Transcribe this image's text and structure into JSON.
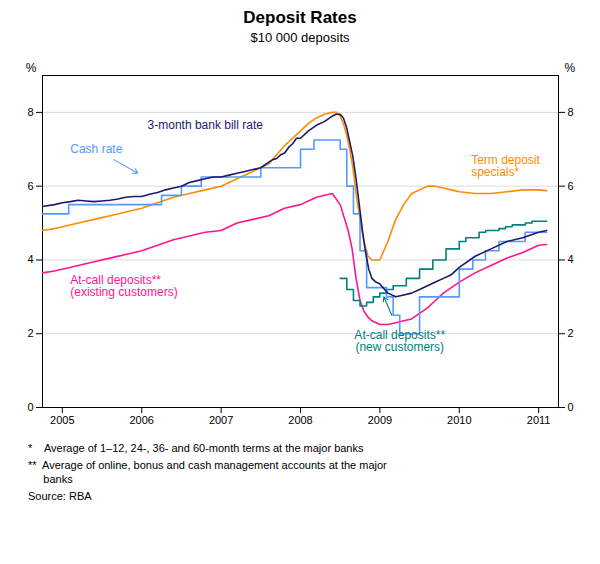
{
  "chart_data": {
    "type": "line",
    "title": "Deposit Rates",
    "subtitle": "$10 000 deposits",
    "ylabel": "%",
    "y2label": "%",
    "xlim": [
      2004.75,
      2011.25
    ],
    "xticks": [
      2005,
      2006,
      2007,
      2008,
      2009,
      2010,
      2011
    ],
    "ylim": [
      0,
      9
    ],
    "yticks": [
      0,
      2,
      4,
      6,
      8
    ],
    "y2lim": [
      0,
      9
    ],
    "y2ticks": [
      0,
      2,
      4,
      6,
      8
    ],
    "grid": true,
    "series": [
      {
        "name": "At-call deposits**\n(existing customers)",
        "color": "#ff1493",
        "type": "line",
        "x": [
          2004.75,
          2004.9,
          2005.0,
          2005.2,
          2005.4,
          2005.6,
          2005.8,
          2006.0,
          2006.2,
          2006.4,
          2006.6,
          2006.8,
          2007.0,
          2007.2,
          2007.4,
          2007.6,
          2007.8,
          2008.0,
          2008.2,
          2008.4,
          2008.5,
          2008.6,
          2008.65,
          2008.7,
          2008.75,
          2008.8,
          2008.85,
          2008.9,
          2009.0,
          2009.1,
          2009.2,
          2009.3,
          2009.4,
          2009.5,
          2009.6,
          2009.7,
          2009.8,
          2009.9,
          2010.0,
          2010.2,
          2010.4,
          2010.6,
          2010.8,
          2011.0,
          2011.1
        ],
        "values": [
          3.65,
          3.7,
          3.75,
          3.85,
          3.95,
          4.05,
          4.15,
          4.25,
          4.4,
          4.55,
          4.65,
          4.75,
          4.8,
          5.0,
          5.1,
          5.2,
          5.4,
          5.5,
          5.7,
          5.8,
          5.5,
          4.8,
          4.3,
          3.5,
          2.9,
          2.6,
          2.45,
          2.35,
          2.25,
          2.25,
          2.3,
          2.35,
          2.4,
          2.55,
          2.7,
          2.9,
          3.1,
          3.25,
          3.4,
          3.65,
          3.85,
          4.05,
          4.2,
          4.4,
          4.42
        ]
      },
      {
        "name": "Term deposit\nspecials*",
        "color": "#ff8c00",
        "type": "line",
        "x": [
          2004.75,
          2004.9,
          2005.0,
          2005.2,
          2005.4,
          2005.6,
          2005.8,
          2006.0,
          2006.2,
          2006.4,
          2006.6,
          2006.8,
          2007.0,
          2007.2,
          2007.4,
          2007.6,
          2007.8,
          2008.0,
          2008.1,
          2008.2,
          2008.3,
          2008.4,
          2008.45,
          2008.5,
          2008.54,
          2008.58,
          2008.62,
          2008.66,
          2008.7,
          2008.75,
          2008.8,
          2008.85,
          2008.9,
          2009.0,
          2009.1,
          2009.2,
          2009.3,
          2009.4,
          2009.5,
          2009.6,
          2009.7,
          2009.8,
          2009.9,
          2010.0,
          2010.2,
          2010.4,
          2010.6,
          2010.8,
          2011.0,
          2011.1
        ],
        "values": [
          4.8,
          4.85,
          4.9,
          5.0,
          5.1,
          5.2,
          5.3,
          5.4,
          5.55,
          5.7,
          5.8,
          5.9,
          6.0,
          6.2,
          6.4,
          6.6,
          7.1,
          7.5,
          7.7,
          7.85,
          7.95,
          8.0,
          8.0,
          7.9,
          7.7,
          7.4,
          7.0,
          6.5,
          5.8,
          5.1,
          4.5,
          4.1,
          4.0,
          4.0,
          4.5,
          5.1,
          5.5,
          5.8,
          5.9,
          6.0,
          6.0,
          5.95,
          5.9,
          5.85,
          5.8,
          5.8,
          5.85,
          5.9,
          5.9,
          5.88
        ]
      },
      {
        "name": "At-call deposits**\n(new customers)",
        "color": "#008080",
        "type": "step",
        "x": [
          2008.5,
          2008.583,
          2008.667,
          2008.75,
          2008.833,
          2008.917,
          2009.0,
          2009.083,
          2009.167,
          2009.333,
          2009.5,
          2009.667,
          2009.833,
          2010.0,
          2010.083,
          2010.25,
          2010.333,
          2010.5,
          2010.583,
          2010.667,
          2010.833,
          2010.917,
          2011.0,
          2011.1
        ],
        "values": [
          3.5,
          3.2,
          2.9,
          2.75,
          2.85,
          3.0,
          3.1,
          3.2,
          3.3,
          3.5,
          3.75,
          4.0,
          4.3,
          4.5,
          4.6,
          4.75,
          4.8,
          4.85,
          4.9,
          4.95,
          5.0,
          5.05,
          5.05,
          5.05
        ]
      },
      {
        "name": "Cash rate",
        "color": "#5599ff",
        "type": "step",
        "x": [
          2004.75,
          2005.08,
          2005.25,
          2005.5,
          2005.75,
          2006.0,
          2006.25,
          2006.5,
          2006.75,
          2007.0,
          2007.25,
          2007.5,
          2007.75,
          2008.0,
          2008.17,
          2008.5,
          2008.583,
          2008.667,
          2008.75,
          2008.833,
          2008.917,
          2009.0,
          2009.083,
          2009.167,
          2009.25,
          2009.333,
          2009.5,
          2009.75,
          2010.0,
          2010.17,
          2010.33,
          2010.5,
          2010.83,
          2011.0,
          2011.1
        ],
        "values": [
          5.25,
          5.5,
          5.5,
          5.5,
          5.5,
          5.5,
          5.75,
          6.0,
          6.25,
          6.25,
          6.25,
          6.5,
          6.5,
          7.0,
          7.25,
          7.0,
          6.0,
          5.25,
          4.25,
          3.25,
          3.25,
          3.25,
          3.0,
          2.5,
          2.0,
          2.0,
          3.0,
          3.0,
          3.75,
          4.0,
          4.25,
          4.5,
          4.75,
          4.75,
          4.75
        ]
      },
      {
        "name": "3-month bank bill rate",
        "color": "#1a1a6e",
        "type": "line",
        "x": [
          2004.75,
          2004.9,
          2005.0,
          2005.1,
          2005.2,
          2005.3,
          2005.4,
          2005.5,
          2005.6,
          2005.7,
          2005.8,
          2005.9,
          2006.0,
          2006.1,
          2006.2,
          2006.3,
          2006.4,
          2006.5,
          2006.6,
          2006.7,
          2006.8,
          2006.9,
          2007.0,
          2007.1,
          2007.2,
          2007.3,
          2007.4,
          2007.5,
          2007.6,
          2007.65,
          2007.7,
          2007.75,
          2007.8,
          2007.85,
          2007.9,
          2007.95,
          2008.0,
          2008.1,
          2008.2,
          2008.3,
          2008.4,
          2008.45,
          2008.5,
          2008.54,
          2008.58,
          2008.62,
          2008.66,
          2008.7,
          2008.74,
          2008.78,
          2008.82,
          2008.86,
          2008.9,
          2008.95,
          2009.0,
          2009.1,
          2009.2,
          2009.3,
          2009.4,
          2009.5,
          2009.6,
          2009.7,
          2009.8,
          2009.9,
          2010.0,
          2010.2,
          2010.4,
          2010.6,
          2010.8,
          2011.0,
          2011.1
        ],
        "values": [
          5.45,
          5.5,
          5.55,
          5.58,
          5.62,
          5.6,
          5.58,
          5.6,
          5.62,
          5.65,
          5.7,
          5.72,
          5.72,
          5.78,
          5.83,
          5.9,
          5.95,
          6.0,
          6.1,
          6.15,
          6.2,
          6.25,
          6.25,
          6.3,
          6.35,
          6.4,
          6.45,
          6.5,
          6.65,
          6.72,
          6.75,
          6.85,
          6.9,
          7.05,
          7.15,
          7.3,
          7.3,
          7.5,
          7.65,
          7.75,
          7.9,
          7.95,
          7.95,
          7.85,
          7.6,
          7.2,
          6.8,
          6.2,
          5.5,
          4.8,
          4.2,
          3.75,
          3.5,
          3.4,
          3.35,
          3.1,
          3.0,
          3.05,
          3.1,
          3.2,
          3.3,
          3.4,
          3.5,
          3.6,
          3.8,
          4.1,
          4.3,
          4.5,
          4.6,
          4.75,
          4.8
        ]
      }
    ],
    "annotations": [
      {
        "text": "3-month bank bill rate",
        "x": 2006.8,
        "y": 7.55
      },
      {
        "text": "Cash rate",
        "x": 2005.1,
        "y": 7.0
      },
      {
        "text": "Term deposit\nspecials*",
        "x": 2010.15,
        "y": 6.55
      },
      {
        "text": "At-call deposits**\n(existing customers)",
        "x": 2005.1,
        "y": 3.3
      },
      {
        "text": "At-call deposits**\n(new customers)",
        "x": 2009.25,
        "y": 2.1
      }
    ],
    "arrows": [
      {
        "x1": 2005.65,
        "y1": 6.72,
        "x2": 2005.95,
        "y2": 6.35,
        "color": "#5599ff"
      },
      {
        "x1": 2009.15,
        "y1": 2.5,
        "x2": 2009.05,
        "y2": 3.0,
        "color": "#008080"
      }
    ],
    "footnotes": [
      "*    Average of 1–12, 24-, 36- and 60-month terms at the major banks",
      "**  Average of online, bonus and cash management accounts at the major\n     banks",
      "Source: RBA"
    ]
  }
}
